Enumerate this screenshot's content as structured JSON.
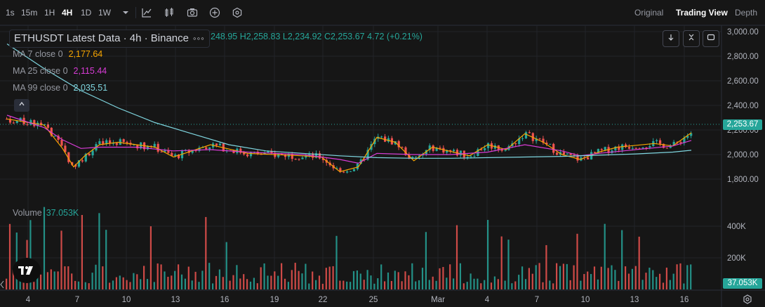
{
  "toolbar": {
    "intervals": [
      {
        "label": "1s",
        "active": false
      },
      {
        "label": "15m",
        "active": false
      },
      {
        "label": "1H",
        "active": false
      },
      {
        "label": "4H",
        "active": true
      },
      {
        "label": "1D",
        "active": false
      },
      {
        "label": "1W",
        "active": false
      }
    ],
    "icons": [
      "chevron-down-icon",
      "indicators-icon",
      "chart-style-icon",
      "camera-icon",
      "add-icon",
      "settings-hex-icon"
    ],
    "views": [
      {
        "label": "Original",
        "active": false
      },
      {
        "label": "Trading View",
        "active": true
      },
      {
        "label": "Depth",
        "active": false
      }
    ]
  },
  "legend": {
    "title": "ETHUSDT Latest Data · 4h · Binance",
    "more": "◦◦◦",
    "ohlc": "248.95  H2,258.83  L2,234.92  C2,253.67  4.72 (+0.21%)"
  },
  "ma": [
    {
      "label": "MA 7 close 0",
      "value": "2,177.64",
      "color": "#f7a600"
    },
    {
      "label": "MA 25 close 0",
      "value": "2,115.44",
      "color": "#d83cd6"
    },
    {
      "label": "MA 99 close 0",
      "value": "2,035.51",
      "color": "#7fd6e0"
    }
  ],
  "volume": {
    "label": "Volume",
    "value": "37.053K"
  },
  "price_axis": [
    "3,000.00",
    "2,800.00",
    "2,600.00",
    "2,400.00",
    "2,200.00",
    "2,000.00",
    "1,800.00"
  ],
  "volume_axis": [
    "400K",
    "200K"
  ],
  "time_axis": [
    "4",
    "7",
    "10",
    "13",
    "16",
    "19",
    "22",
    "25",
    "Mar",
    "4",
    "7",
    "10",
    "13",
    "16"
  ],
  "last_price": "2,253.67",
  "last_volume": "37.053K",
  "colors": {
    "up": "#26a69a",
    "down": "#ef5350",
    "bg": "#161616",
    "grid": "#222428"
  },
  "chart_data": {
    "type": "line",
    "title": "ETHUSDT Latest Data · 4h · Binance",
    "x_ticks": [
      "4",
      "7",
      "10",
      "13",
      "16",
      "19",
      "22",
      "25",
      "Mar",
      "4",
      "7",
      "10",
      "13",
      "16"
    ],
    "y_ticks": [
      3000,
      2800,
      2600,
      2400,
      2200,
      2000,
      1800
    ],
    "ylim": [
      1700,
      3050
    ],
    "series": [
      {
        "name": "MA 7 close 0",
        "color": "#f7a600",
        "points": [
          [
            0,
            2290
          ],
          [
            2,
            2240
          ],
          [
            3,
            2050
          ],
          [
            3.6,
            1900
          ],
          [
            4.2,
            1990
          ],
          [
            5,
            2080
          ],
          [
            6,
            2100
          ],
          [
            8,
            2060
          ],
          [
            9,
            1980
          ],
          [
            11,
            2080
          ],
          [
            13,
            2010
          ],
          [
            16,
            1990
          ],
          [
            17,
            1980
          ],
          [
            18,
            1860
          ],
          [
            19,
            1900
          ],
          [
            20,
            2140
          ],
          [
            21,
            2100
          ],
          [
            22,
            1950
          ],
          [
            23,
            2060
          ],
          [
            25,
            1990
          ],
          [
            26,
            2080
          ],
          [
            27,
            2040
          ],
          [
            28,
            2170
          ],
          [
            29,
            2100
          ],
          [
            30,
            2000
          ],
          [
            31,
            1960
          ],
          [
            32,
            2020
          ],
          [
            33,
            2060
          ],
          [
            35,
            2090
          ],
          [
            36,
            2070
          ],
          [
            37,
            2177
          ]
        ]
      },
      {
        "name": "MA 25 close 0",
        "color": "#d83cd6",
        "points": [
          [
            0,
            2320
          ],
          [
            2,
            2220
          ],
          [
            3,
            2120
          ],
          [
            4,
            2050
          ],
          [
            5,
            2060
          ],
          [
            7,
            2060
          ],
          [
            9,
            2030
          ],
          [
            11,
            2040
          ],
          [
            13,
            2020
          ],
          [
            16,
            2000
          ],
          [
            18,
            1960
          ],
          [
            19,
            1930
          ],
          [
            20,
            2010
          ],
          [
            22,
            2000
          ],
          [
            24,
            2000
          ],
          [
            26,
            2020
          ],
          [
            28,
            2080
          ],
          [
            30,
            2030
          ],
          [
            31,
            1990
          ],
          [
            32,
            2010
          ],
          [
            34,
            2040
          ],
          [
            36,
            2070
          ],
          [
            37,
            2115
          ]
        ]
      },
      {
        "name": "MA 99 close 0",
        "color": "#7fd6e0",
        "points": [
          [
            0,
            2900
          ],
          [
            2,
            2700
          ],
          [
            4,
            2520
          ],
          [
            6,
            2380
          ],
          [
            8,
            2260
          ],
          [
            10,
            2170
          ],
          [
            12,
            2080
          ],
          [
            14,
            2030
          ],
          [
            16,
            2010
          ],
          [
            18,
            1990
          ],
          [
            20,
            1975
          ],
          [
            22,
            1970
          ],
          [
            24,
            1970
          ],
          [
            26,
            1975
          ],
          [
            28,
            1980
          ],
          [
            30,
            1985
          ],
          [
            32,
            1995
          ],
          [
            34,
            2005
          ],
          [
            36,
            2020
          ],
          [
            37,
            2035
          ]
        ]
      }
    ],
    "last_close": 2253.67
  }
}
